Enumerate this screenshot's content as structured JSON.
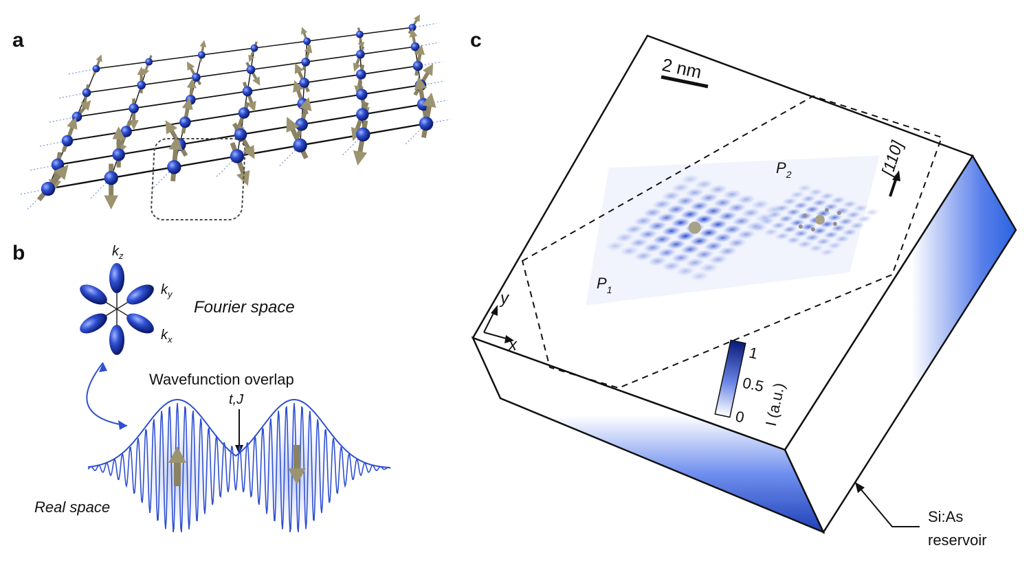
{
  "panels": {
    "a": {
      "letter": "a"
    },
    "b": {
      "letter": "b",
      "kz": "k",
      "kz_sub": "z",
      "ky": "k",
      "ky_sub": "y",
      "kx": "k",
      "kx_sub": "x",
      "fourier_label": "Fourier space",
      "overlap_label": "Wavefunction overlap",
      "tj_label": "t,J",
      "real_label": "Real space"
    },
    "c": {
      "letter": "c",
      "scale_bar": "2 nm",
      "p1": "P",
      "p1_sub": "1",
      "p2": "P",
      "p2_sub": "2",
      "direction": "[110]",
      "axis_y": "y",
      "axis_x": "x",
      "colorbar_max": "1",
      "colorbar_mid": "0.5",
      "colorbar_min": "0",
      "colorbar_label": "I (a.u.)",
      "reservoir_line1": "Si:As",
      "reservoir_line2": "reservoir"
    }
  },
  "colors": {
    "spin_blue": "#2f4fd0",
    "arrow_olive": "#9c9470",
    "density_dark": "#0a1a7a",
    "reservoir_blue": "#2a63e0"
  }
}
